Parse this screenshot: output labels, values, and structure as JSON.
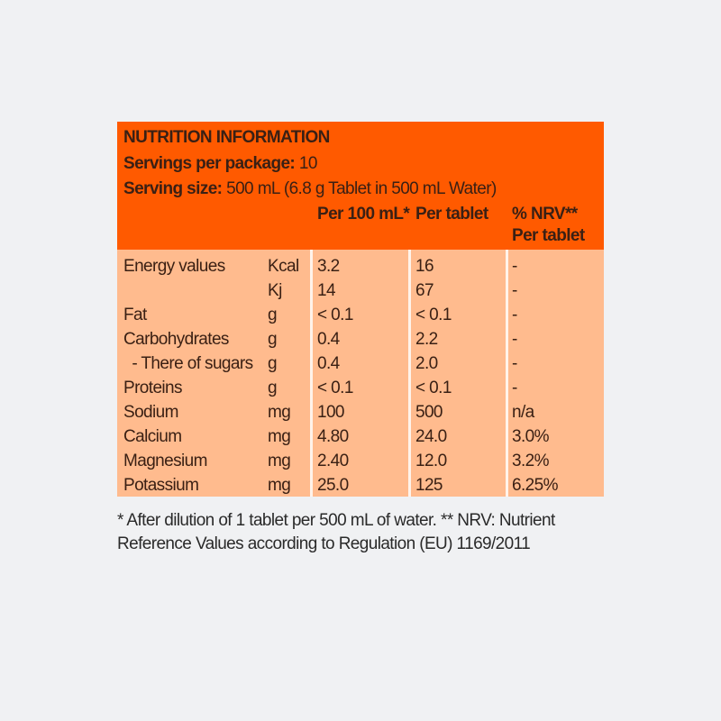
{
  "header": {
    "title": "NUTRITION INFORMATION",
    "servings_label": "Servings per package:",
    "servings_value": "10",
    "size_label": "Serving size:",
    "size_value": "500 mL (6.8 g Tablet in 500 mL Water)",
    "col_per100": "Per 100 mL*",
    "col_pertablet": "Per tablet",
    "col_nrv_1": "% NRV**",
    "col_nrv_2": "Per tablet"
  },
  "rows": [
    {
      "name": "Energy values",
      "unit": "Kcal",
      "per100": "3.2",
      "pertab": "16",
      "nrv": "-"
    },
    {
      "name": "",
      "unit": "Kj",
      "per100": "14",
      "pertab": "67",
      "nrv": "-"
    },
    {
      "name": "Fat",
      "unit": "g",
      "per100": "< 0.1",
      "pertab": "< 0.1",
      "nrv": "-"
    },
    {
      "name": "Carbohydrates",
      "unit": "g",
      "per100": "0.4",
      "pertab": "2.2",
      "nrv": "-"
    },
    {
      "name": "  - There of sugars",
      "unit": "g",
      "per100": "0.4",
      "pertab": "2.0",
      "nrv": "-"
    },
    {
      "name": "Proteins",
      "unit": "g",
      "per100": "< 0.1",
      "pertab": "< 0.1",
      "nrv": "-"
    },
    {
      "name": "Sodium",
      "unit": "mg",
      "per100": "100",
      "pertab": "500",
      "nrv": "n/a"
    },
    {
      "name": "Calcium",
      "unit": "mg",
      "per100": "4.80",
      "pertab": "24.0",
      "nrv": "3.0%"
    },
    {
      "name": "Magnesium",
      "unit": "mg",
      "per100": "2.40",
      "pertab": "12.0",
      "nrv": "3.2%"
    },
    {
      "name": "Potassium",
      "unit": "mg",
      "per100": "25.0",
      "pertab": "125",
      "nrv": "6.25%"
    }
  ],
  "footnote": "* After dilution of 1 tablet per 500 mL of water. ** NRV: Nutrient Reference Values according to Regulation (EU) 1169/2011",
  "colors": {
    "header": "#ff5a00",
    "body": "#ffbb8e",
    "background": "#f0f1f3"
  }
}
